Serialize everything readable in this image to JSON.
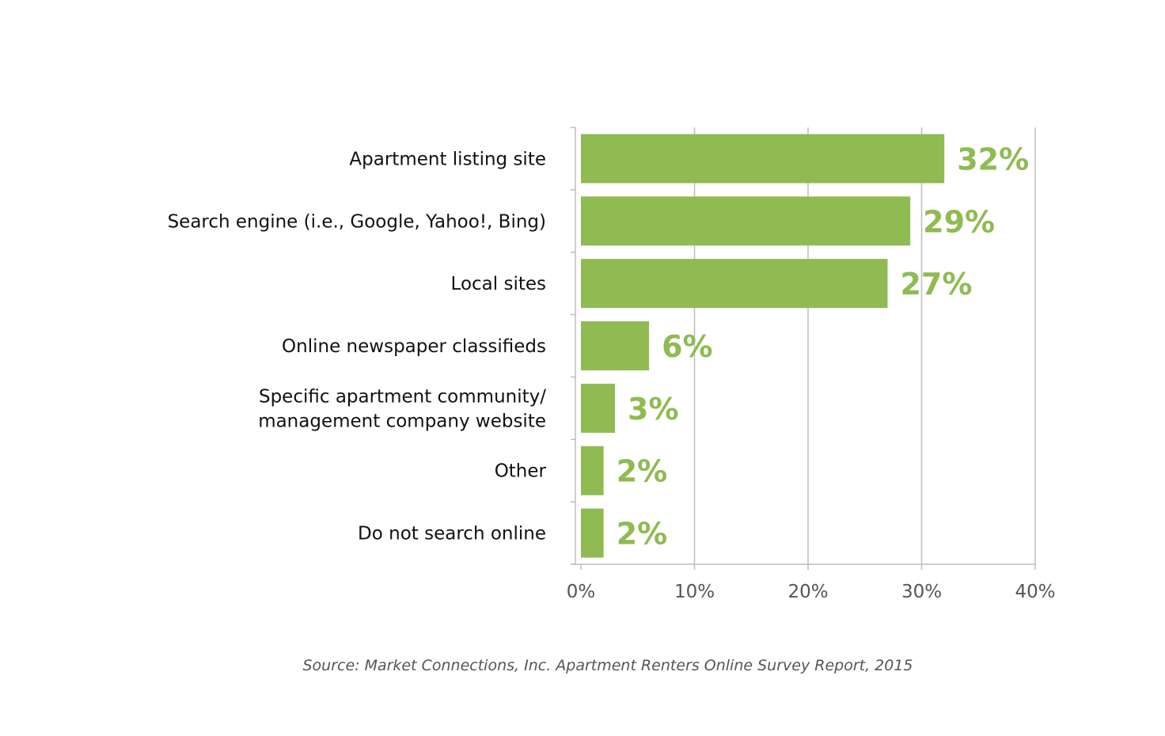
{
  "chart_data": {
    "type": "bar",
    "orientation": "horizontal",
    "categories": [
      "Apartment listing site",
      "Search engine (i.e., Google, Yahoo!, Bing)",
      "Local sites",
      "Online newspaper classifieds",
      "Specific apartment community/\nmanagement company website",
      "Other",
      "Do not search online"
    ],
    "values": [
      32,
      29,
      27,
      6,
      3,
      2,
      2
    ],
    "data_labels": [
      "32%",
      "29%",
      "27%",
      "6%",
      "3%",
      "2%",
      "2%"
    ],
    "x_ticks": [
      "0%",
      "10%",
      "20%",
      "30%",
      "40%"
    ],
    "xlim": [
      0,
      40
    ],
    "title": "",
    "xlabel": "",
    "ylabel": "",
    "grid": "vertical",
    "legend": "none",
    "colors": {
      "bar": "#8fbb52",
      "data_label": "#8fbb52",
      "grid": "#bdbdbd",
      "axis": "#bdbdbd"
    }
  },
  "source": "Source: Market Connections, Inc. Apartment Renters Online Survey Report, 2015"
}
